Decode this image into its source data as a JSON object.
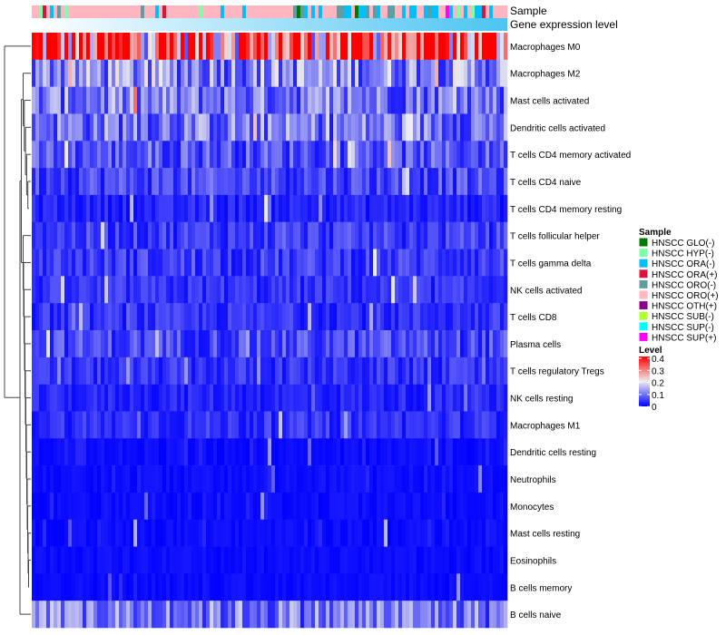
{
  "chart_data": {
    "type": "heatmap",
    "annotation_labels": {
      "sample": "Sample",
      "gene": "Gene expression level"
    },
    "n_columns": 131,
    "rows": [
      "Macrophages M0",
      "Macrophages M2",
      "Mast cells activated",
      "Dendritic cells activated",
      "T cells CD4 memory activated",
      "T cells CD4 naive",
      "T cells CD4 memory resting",
      "T cells follicular helper",
      "T cells gamma delta",
      "NK cells activated",
      "T cells CD8",
      "Plasma cells",
      "T cells regulatory  Tregs",
      "NK cells resting",
      "Macrophages M1",
      "Dendritic cells resting",
      "Neutrophils",
      "Monocytes",
      "Mast cells resting",
      "Eosinophils",
      "B cells memory",
      "B cells naive"
    ],
    "row_mean_level": [
      0.32,
      0.12,
      0.1,
      0.1,
      0.07,
      0.06,
      0.03,
      0.05,
      0.05,
      0.04,
      0.04,
      0.06,
      0.04,
      0.03,
      0.04,
      0.02,
      0.02,
      0.02,
      0.02,
      0.01,
      0.01,
      0.1
    ],
    "sample_sequence": "PPHRPSPOPHPPPPPPPPPPPPPPPPPPPPOPPPSPRPPPPPPPPPHPPPPPSPPPPPSPPPPPPPPPPPPPOGOSPSPSPPPPOOSSPGSSOPOSPPOOPPSPSSPPSOSSPPUSPHPSPHSSRPSPP",
    "sample_legend": {
      "title": "Sample",
      "items": [
        {
          "code": "G",
          "label": "HNSCC GLO(-)",
          "color": "#007a00"
        },
        {
          "code": "H",
          "label": "HNSCC HYP(-)",
          "color": "#7fffaa"
        },
        {
          "code": "S",
          "label": "HNSCC ORA(-)",
          "color": "#00bfff"
        },
        {
          "code": "R",
          "label": "HNSCC ORA(+)",
          "color": "#dc143c"
        },
        {
          "code": "O",
          "label": "HNSCC ORO(-)",
          "color": "#5f9ea0"
        },
        {
          "code": "P",
          "label": "HNSCC ORO(+)",
          "color": "#ffb6c1"
        },
        {
          "code": "T",
          "label": "HNSCC OTH(+)",
          "color": "#8b008b"
        },
        {
          "code": "B",
          "label": "HNSCC SUB(-)",
          "color": "#adff2f"
        },
        {
          "code": "C",
          "label": "HNSCC SUP(-)",
          "color": "#00ffff"
        },
        {
          "code": "U",
          "label": "HNSCC SUP(+)",
          "color": "#ff00ff"
        }
      ]
    },
    "level_legend": {
      "title": "Level",
      "ticks": [
        "0.4",
        "0.3",
        "0.2",
        "0.1",
        "0"
      ],
      "range": [
        0,
        0.4
      ]
    },
    "colors": {
      "low": "#0000ff",
      "mid": "#eeeeee",
      "high": "#ff0000",
      "gene_low": "#ffffff",
      "gene_high": "#4cc4f2"
    }
  }
}
